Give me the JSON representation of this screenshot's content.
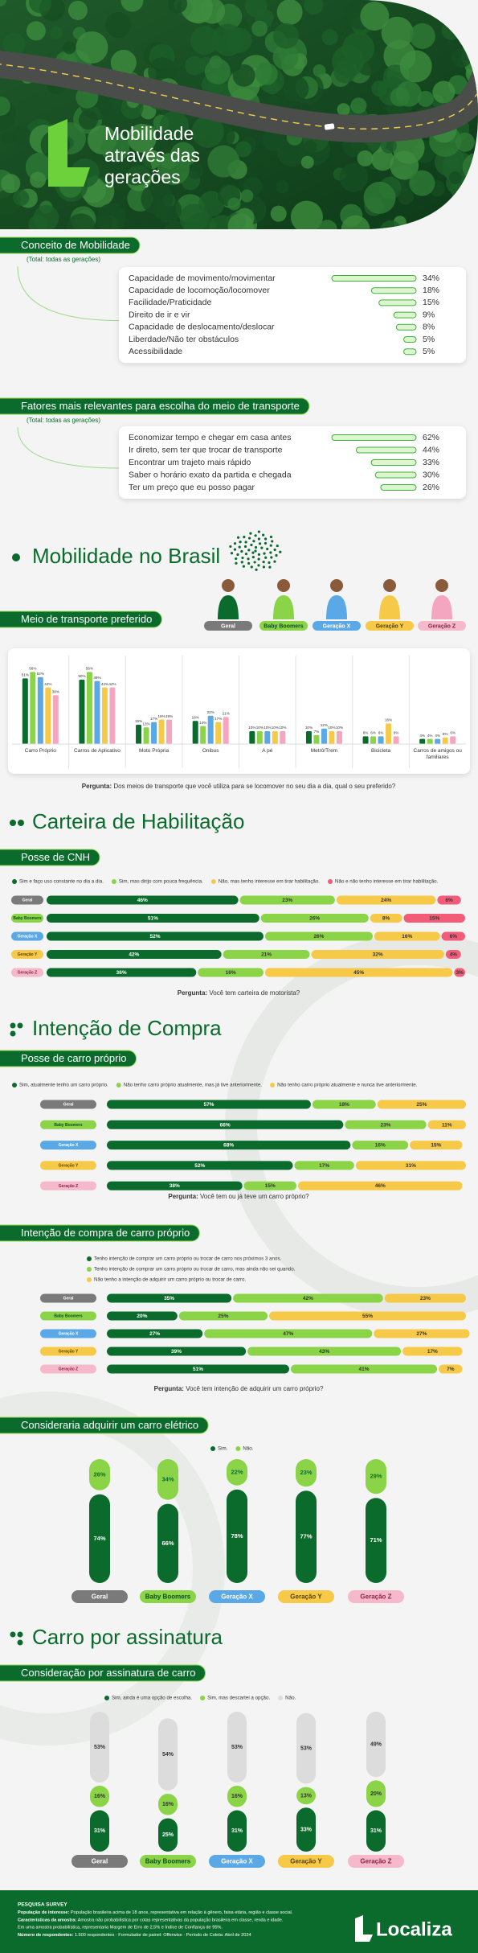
{
  "header": {
    "title_lines": [
      "Mobilidade",
      "através das",
      "gerações"
    ]
  },
  "conceito": {
    "title": "Conceito de Mobilidade",
    "subtitle": "(Total: todas as gerações)",
    "items": [
      {
        "label": "Capacidade de movimento/movimentar",
        "value": 34,
        "value_label": "34%"
      },
      {
        "label": "Capacidade de locomoção/locomover",
        "value": 18,
        "value_label": "18%"
      },
      {
        "label": "Facilidade/Praticidade",
        "value": 15,
        "value_label": "15%"
      },
      {
        "label": "Direito de ir e vir",
        "value": 9,
        "value_label": "9%"
      },
      {
        "label": "Capacidade de deslocamento/deslocar",
        "value": 8,
        "value_label": "8%"
      },
      {
        "label": "Liberdade/Não ter obstáculos",
        "value": 5,
        "value_label": "5%"
      },
      {
        "label": "Acessibilidade",
        "value": 5,
        "value_label": "5%"
      }
    ]
  },
  "fatores": {
    "title": "Fatores mais relevantes para escolha do meio de transporte",
    "subtitle": "(Total: todas as gerações)",
    "items": [
      {
        "label": "Economizar tempo e chegar em casa antes",
        "value": 62,
        "value_label": "62%"
      },
      {
        "label": "Ir direto, sem ter que trocar de transporte",
        "value": 44,
        "value_label": "44%"
      },
      {
        "label": "Encontrar um trajeto mais rápido",
        "value": 33,
        "value_label": "33%"
      },
      {
        "label": "Saber o horário exato da partida e chegada",
        "value": 30,
        "value_label": "30%"
      },
      {
        "label": "Ter um preço que eu posso pagar",
        "value": 26,
        "value_label": "26%"
      }
    ]
  },
  "brasil": {
    "title": "Mobilidade no Brasil"
  },
  "meio": {
    "title": "Meio de transporte preferido",
    "categories": [
      "Carro Próprio",
      "Carros de Aplicativo",
      "Moto Própria",
      "Ônibus",
      "A pé",
      "Metrô/Trem",
      "Bicicleta",
      "Carros de amigos ou familiares"
    ],
    "series": [
      {
        "name": "Geral",
        "color": "#0b6b2d",
        "values": [
          51,
          50,
          15,
          18,
          10,
          10,
          6,
          4
        ],
        "value_labels": [
          "51%",
          "50%",
          "15%",
          "18%",
          "10%",
          "10%",
          "6%",
          "4%"
        ]
      },
      {
        "name": "Baby Boomers",
        "color": "#8bd448",
        "values": [
          56,
          56,
          13,
          14,
          10,
          7,
          6,
          4
        ],
        "value_labels": [
          "56%",
          "56%",
          "13%",
          "14%",
          "10%",
          "7%",
          "6%",
          "4%"
        ]
      },
      {
        "name": "Geração X",
        "color": "#5aa9e6",
        "values": [
          52,
          49,
          17,
          22,
          10,
          12,
          6,
          4
        ],
        "value_labels": [
          "52%",
          "49%",
          "17%",
          "22%",
          "10%",
          "12%",
          "6%",
          "4%"
        ]
      },
      {
        "name": "Geração Y",
        "color": "#f7c948",
        "values": [
          44,
          44,
          19,
          17,
          10,
          10,
          16,
          5
        ],
        "value_labels": [
          "44%",
          "44%",
          "19%",
          "17%",
          "10%",
          "10%",
          "16%",
          "5%"
        ]
      },
      {
        "name": "Geração Z",
        "color": "#f4a6c0",
        "values": [
          38,
          44,
          19,
          21,
          10,
          10,
          6,
          6
        ],
        "value_labels": [
          "38%",
          "44%",
          "19%",
          "21%",
          "10%",
          "10%",
          "6%",
          "6%"
        ]
      }
    ],
    "question_label": "Pergunta:",
    "question": "Dos meios de transporte que você utiliza para se locomover no seu dia a dia, qual o seu preferido?"
  },
  "cnh": {
    "section_title": "Carteira de Habilitação",
    "title": "Posse de CNH",
    "categories": [
      "Geral",
      "Baby Boomers",
      "Geração X",
      "Geração Y",
      "Geração Z"
    ],
    "series": [
      {
        "name": "Sim e faço uso constante no dia a dia.",
        "color": "#0b6b2d",
        "values": [
          46,
          51,
          52,
          42,
          36
        ],
        "value_labels": [
          "46%",
          "51%",
          "52%",
          "42%",
          "36%"
        ]
      },
      {
        "name": "Sim, mas dirijo com pouca frequência.",
        "color": "#8bd448",
        "values": [
          23,
          26,
          26,
          21,
          16
        ],
        "value_labels": [
          "23%",
          "26%",
          "26%",
          "21%",
          "16%"
        ]
      },
      {
        "name": "Não, mas tenho interesse em tirar habilitação.",
        "color": "#f7c948",
        "values": [
          24,
          8,
          16,
          32,
          45
        ],
        "value_labels": [
          "24%",
          "8%",
          "16%",
          "32%",
          "45%"
        ]
      },
      {
        "name": "Não e não tenho interesse em tirar habilitação.",
        "color": "#f25c78",
        "values": [
          6,
          15,
          6,
          4,
          3
        ],
        "value_labels": [
          "6%",
          "15%",
          "6%",
          "4%",
          "3%"
        ]
      }
    ],
    "question_label": "Pergunta:",
    "question": "Você tem carteira de motorista?"
  },
  "posse": {
    "section_title": "Intenção de Compra",
    "title": "Posse de carro próprio",
    "categories": [
      "Geral",
      "Baby Boomers",
      "Geração X",
      "Geração Y",
      "Geração Z"
    ],
    "series": [
      {
        "name": "Sim, atualmente tenho um carro próprio.",
        "color": "#0b6b2d",
        "values": [
          57,
          66,
          68,
          52,
          38
        ],
        "value_labels": [
          "57%",
          "66%",
          "68%",
          "52%",
          "38%"
        ]
      },
      {
        "name": "Não tenho carro próprio atualmente, mas já tive anteriormente.",
        "color": "#8bd448",
        "values": [
          18,
          23,
          16,
          17,
          15
        ],
        "value_labels": [
          "18%",
          "23%",
          "16%",
          "17%",
          "15%"
        ]
      },
      {
        "name": "Não tenho carro próprio atualmente e nunca tive anteriormente.",
        "color": "#f7c948",
        "values": [
          25,
          11,
          15,
          31,
          46
        ],
        "value_labels": [
          "25%",
          "11%",
          "15%",
          "31%",
          "46%"
        ]
      }
    ],
    "question_label": "Pergunta:",
    "question": "Você tem ou já teve um carro próprio?"
  },
  "intencao": {
    "title": "Intenção de compra de carro próprio",
    "categories": [
      "Geral",
      "Baby Boomers",
      "Geração X",
      "Geração Y",
      "Geração Z"
    ],
    "series": [
      {
        "name": "Tenho intenção de comprar um carro próprio ou trocar de carro nos próximos 3 anos.",
        "color": "#0b6b2d",
        "values": [
          35,
          20,
          27,
          39,
          51
        ],
        "value_labels": [
          "35%",
          "20%",
          "27%",
          "39%",
          "51%"
        ]
      },
      {
        "name": "Tenho intenção de comprar um carro próprio ou trocar de carro, mas ainda não sei quando.",
        "color": "#8bd448",
        "values": [
          42,
          25,
          47,
          43,
          41
        ],
        "value_labels": [
          "42%",
          "25%",
          "47%",
          "43%",
          "41%"
        ]
      },
      {
        "name": "Não tenho a intenção de adquirir um carro próprio ou trocar de carro.",
        "color": "#f7c948",
        "values": [
          23,
          55,
          27,
          17,
          7
        ],
        "value_labels": [
          "23%",
          "55%",
          "27%",
          "17%",
          "7%"
        ]
      }
    ],
    "question_label": "Pergunta:",
    "question": "Você tem intenção de adquirir um carro próprio?"
  },
  "eletrico": {
    "title": "Consideraria adquirir um carro elétrico",
    "categories": [
      "Geral",
      "Baby Boomers",
      "Geração X",
      "Geração Y",
      "Geração Z"
    ],
    "series": [
      {
        "name": "Sim.",
        "color": "#0b6b2d",
        "values": [
          74,
          66,
          78,
          77,
          71
        ],
        "value_labels": [
          "74%",
          "66%",
          "78%",
          "77%",
          "71%"
        ]
      },
      {
        "name": "Não.",
        "color": "#8bd448",
        "values": [
          26,
          34,
          22,
          23,
          29
        ],
        "value_labels": [
          "26%",
          "34%",
          "22%",
          "23%",
          "29%"
        ]
      }
    ]
  },
  "assinatura": {
    "section_title": "Carro por assinatura",
    "title": "Consideração por assinatura de carro",
    "categories": [
      "Geral",
      "Baby Boomers",
      "Geração X",
      "Geração Y",
      "Geração Z"
    ],
    "series": [
      {
        "name": "Sim, ainda é uma opção de escolha.",
        "color": "#0b6b2d",
        "values": [
          31,
          25,
          31,
          33,
          31
        ],
        "value_labels": [
          "31%",
          "25%",
          "31%",
          "33%",
          "31%"
        ]
      },
      {
        "name": "Sim, mas descartei a opção.",
        "color": "#8bd448",
        "values": [
          16,
          16,
          16,
          13,
          20
        ],
        "value_labels": [
          "16%",
          "16%",
          "16%",
          "13%",
          "20%"
        ]
      },
      {
        "name": "Não.",
        "color": "#dcdcdc",
        "values": [
          53,
          54,
          53,
          53,
          49
        ],
        "value_labels": [
          "53%",
          "54%",
          "53%",
          "53%",
          "49%"
        ]
      }
    ]
  },
  "footer": {
    "heading": "PESQUISA SURVEY",
    "lines": [
      {
        "label": "População de interesse:",
        "text": "População brasileira acima de 18 anos, representativa em relação à gênero, faixa etária, região e classe social."
      },
      {
        "label": "Características da amostra:",
        "text": "Amostra não probabilística por cotas representativas da população brasileira em classe, renda e idade."
      },
      {
        "label": "",
        "text": "Em uma amostra probabilística, representaria Margem de Erro de 2,5% e Índice de Confiança de 95%."
      },
      {
        "label": "Número de respondentes:",
        "text": "1.500 respondentes · Formulador de painel: Offerwise · Período de Coleta: Abril de 2024"
      }
    ],
    "brand": "Localiza"
  }
}
